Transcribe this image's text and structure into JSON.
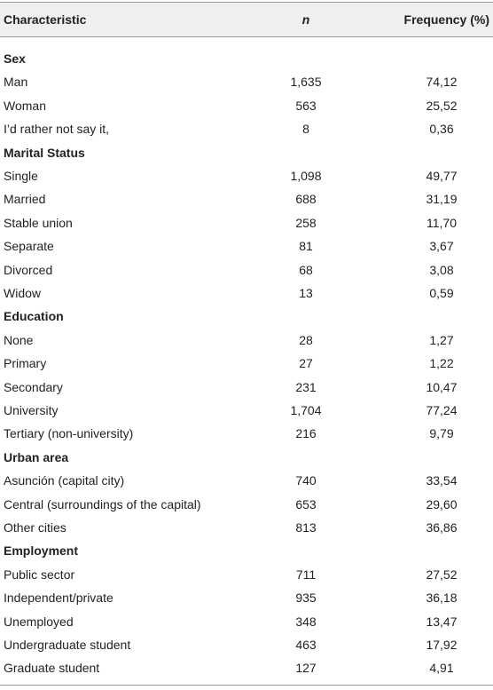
{
  "table": {
    "header": [
      "Characteristic",
      "n",
      "Frequency (%)"
    ],
    "sections": [
      {
        "title": "Sex",
        "rows": [
          [
            "Man",
            "1,635",
            "74,12"
          ],
          [
            "Woman",
            "563",
            "25,52"
          ],
          [
            "I’d rather not say it,",
            "8",
            "0,36"
          ]
        ]
      },
      {
        "title": "Marital Status",
        "rows": [
          [
            "Single",
            "1,098",
            "49,77"
          ],
          [
            "Married",
            "688",
            "31,19"
          ],
          [
            "Stable union",
            "258",
            "11,70"
          ],
          [
            "Separate",
            "81",
            "3,67"
          ],
          [
            "Divorced",
            "68",
            "3,08"
          ],
          [
            "Widow",
            "13",
            "0,59"
          ]
        ]
      },
      {
        "title": "Education",
        "rows": [
          [
            "None",
            "28",
            "1,27"
          ],
          [
            "Primary",
            "27",
            "1,22"
          ],
          [
            "Secondary",
            "231",
            "10,47"
          ],
          [
            "University",
            "1,704",
            "77,24"
          ],
          [
            "Tertiary (non-university)",
            "216",
            "9,79"
          ]
        ]
      },
      {
        "title": "Urban area",
        "rows": [
          [
            "Asunción (capital city)",
            "740",
            "33,54"
          ],
          [
            "Central (surroundings of the capital)",
            "653",
            "29,60"
          ],
          [
            "Other cities",
            "813",
            "36,86"
          ]
        ]
      },
      {
        "title": "Employment",
        "rows": [
          [
            "Public sector",
            "711",
            "27,52"
          ],
          [
            "Independent/private",
            "935",
            "36,18"
          ],
          [
            "Unemployed",
            "348",
            "13,47"
          ],
          [
            "Undergraduate student",
            "463",
            "17,92"
          ],
          [
            "Graduate student",
            "127",
            "4,91"
          ]
        ]
      }
    ]
  }
}
